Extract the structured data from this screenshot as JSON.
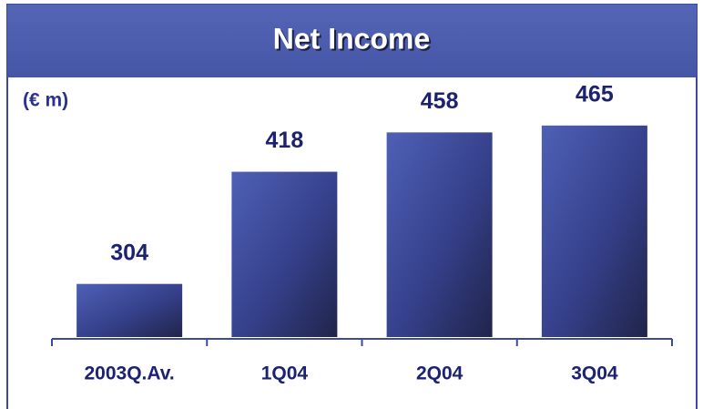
{
  "chart_data": {
    "type": "bar",
    "title": "Net Income",
    "unit_label": "(€ m)",
    "categories": [
      "2003Q.Av.",
      "1Q04",
      "2Q04",
      "3Q04"
    ],
    "values": [
      304,
      418,
      458,
      465
    ],
    "ylim": [
      250,
      500
    ]
  }
}
